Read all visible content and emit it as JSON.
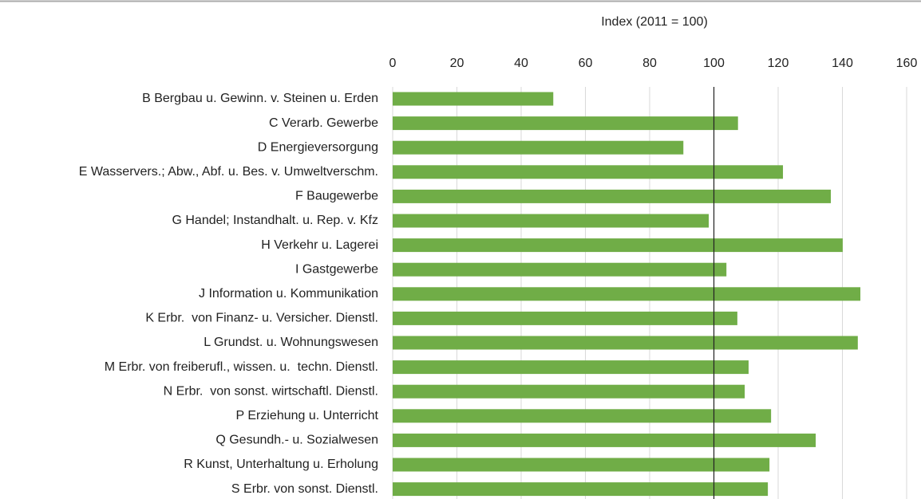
{
  "chart_data": {
    "type": "barh",
    "xlabel": "Index (2011 = 100)",
    "categories": [
      "B Bergbau u. Gewinn. v. Steinen u. Erden",
      "C Verarb. Gewerbe",
      "D Energieversorgung",
      "E Wasservers.; Abw., Abf. u. Bes. v. Umweltverschm.",
      "F Baugewerbe",
      "G Handel; Instandhalt. u. Rep. v. Kfz",
      "H Verkehr u. Lagerei",
      "I Gastgewerbe",
      "J Information u. Kommunikation",
      "K Erbr.  von Finanz- u. Versicher. Dienstl.",
      "L Grundst. u. Wohnungswesen",
      "M Erbr. von freiberufl., wissen. u.  techn. Dienstl.",
      "N Erbr.  von sonst. wirtschaftl. Dienstl.",
      "P Erziehung u. Unterricht",
      "Q Gesundh.- u. Sozialwesen",
      "R Kunst, Unterhaltung u. Erholung",
      "S Erbr. von sonst. Dienstl."
    ],
    "values": [
      50,
      107.5,
      90.5,
      121.5,
      136.4,
      98.4,
      140.1,
      103.9,
      145.6,
      107.3,
      144.8,
      110.8,
      109.6,
      117.8,
      131.7,
      117.3,
      116.8
    ],
    "color": "#70ad47",
    "xlim": [
      0,
      160
    ],
    "xticks": [
      0,
      20,
      40,
      60,
      80,
      100,
      120,
      140,
      160
    ],
    "reference_line": 100,
    "reference_color": "#222222",
    "grid": true
  }
}
